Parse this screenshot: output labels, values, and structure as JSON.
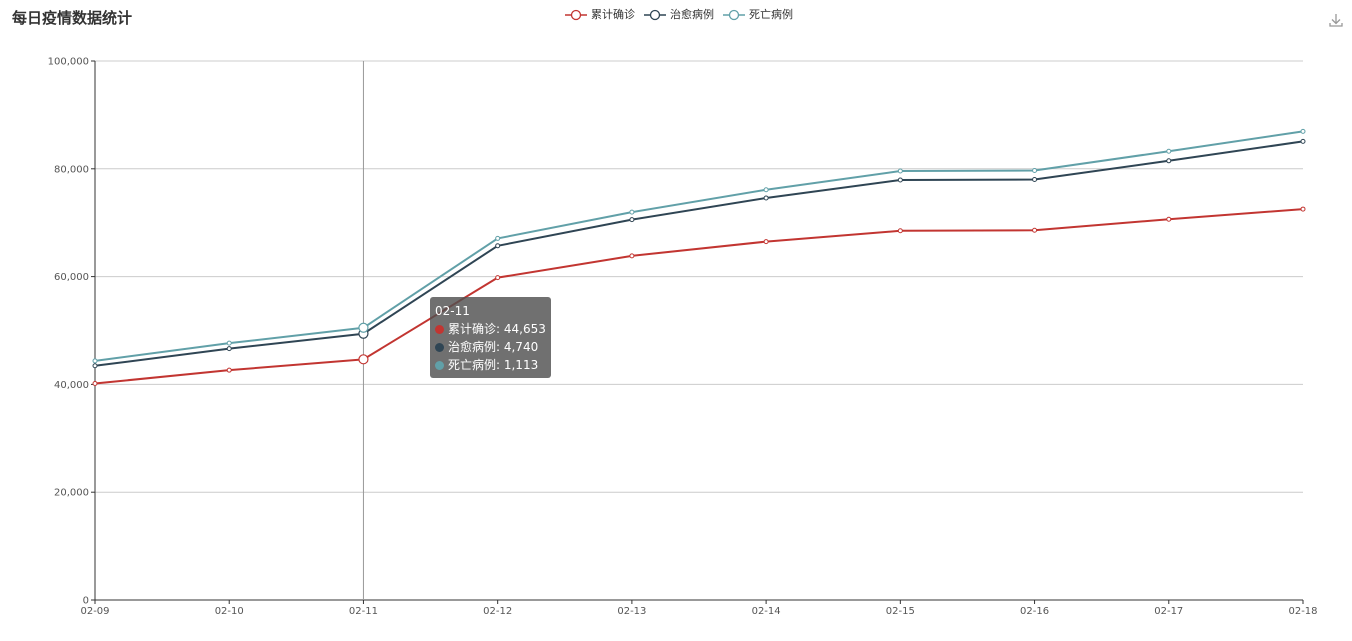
{
  "title": "每日疫情数据统计",
  "colors": {
    "confirmed": "#c23531",
    "cured": "#2f4554",
    "dead": "#61a0a8",
    "axis": "#333333",
    "grid": "#cccccc"
  },
  "legend": [
    {
      "name": "累计确诊",
      "color_key": "confirmed"
    },
    {
      "name": "治愈病例",
      "color_key": "cured"
    },
    {
      "name": "死亡病例",
      "color_key": "dead"
    }
  ],
  "toolbox": {
    "icon": "download-icon"
  },
  "tooltip": {
    "date": "02-11",
    "rows": [
      {
        "label": "累计确诊: 44,653",
        "color_key": "confirmed"
      },
      {
        "label": "治愈病例: 4,740",
        "color_key": "cured"
      },
      {
        "label": "死亡病例: 1,113",
        "color_key": "dead"
      }
    ]
  },
  "chart_data": {
    "type": "line",
    "stacked": true,
    "categories": [
      "02-09",
      "02-10",
      "02-11",
      "02-12",
      "02-13",
      "02-14",
      "02-15",
      "02-16",
      "02-17",
      "02-18"
    ],
    "series": [
      {
        "name": "累计确诊",
        "color_key": "confirmed",
        "values": [
          40171,
          42638,
          44653,
          59804,
          63851,
          66492,
          68500,
          68593,
          70641,
          72528
        ]
      },
      {
        "name": "治愈病例",
        "color_key": "cured",
        "values": [
          3281,
          3996,
          4740,
          5911,
          6723,
          8096,
          9419,
          9419,
          10844,
          12552
        ]
      },
      {
        "name": "死亡病例",
        "color_key": "dead",
        "values": [
          908,
          1016,
          1113,
          1367,
          1380,
          1523,
          1665,
          1665,
          1770,
          1870
        ]
      }
    ],
    "y_ticks": [
      "0",
      "20,000",
      "40,000",
      "60,000",
      "80,000",
      "100,000"
    ],
    "ylim": [
      0,
      100000
    ],
    "grid": true,
    "highlight_category": "02-11",
    "legend_position": "top-center"
  }
}
